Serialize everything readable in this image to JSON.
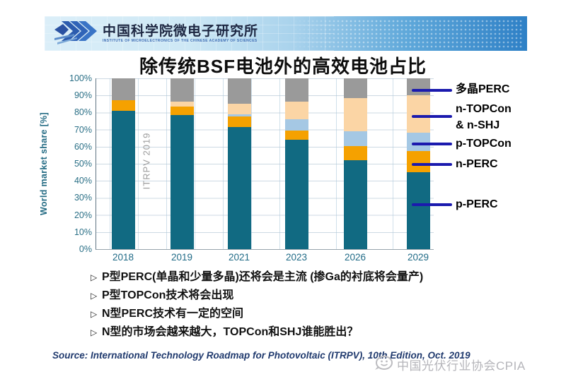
{
  "header": {
    "org_name_cn": "中国科学院微电子研究所",
    "org_name_en": "INSTITUTE OF MICROELECTRONICS OF THE CHINESE ACADEMY OF SCIENCES"
  },
  "slide_title": "除传统BSF电池外的高效电池占比",
  "chart_data": {
    "type": "bar",
    "stacked": true,
    "title": "除传统BSF电池外的高效电池占比",
    "categories": [
      "2018",
      "2019",
      "2021",
      "2023",
      "2026",
      "2029"
    ],
    "series": [
      {
        "name": "p-PERC",
        "color": "#116A82",
        "values": [
          81,
          78.5,
          71.5,
          64,
          52,
          45
        ]
      },
      {
        "name": "n-PERC",
        "color": "#F5A100",
        "values": [
          6,
          5,
          6,
          5.5,
          8.5,
          12.5
        ]
      },
      {
        "name": "p-TOPCon",
        "color": "#A5C8E4",
        "values": [
          0,
          0,
          1.5,
          6.5,
          8.5,
          10.5
        ]
      },
      {
        "name": "n-TOPCon & n-SHJ",
        "color": "#FBD5A5",
        "values": [
          0,
          3,
          6,
          10.5,
          19.5,
          22
        ]
      },
      {
        "name": "多晶PERC",
        "color": "#9A9A9A",
        "values": [
          13,
          13.5,
          15,
          13.5,
          11.5,
          10
        ]
      }
    ],
    "xlabel": "",
    "ylabel": "World market share [%]",
    "ylim": [
      0,
      100
    ],
    "ytick_step": 10,
    "ytick_suffix": "%",
    "grid": true,
    "legend_position": "right",
    "inner_watermark": "ITRPV 2019"
  },
  "legend": {
    "line_color": "#1B1AAE",
    "items": [
      {
        "label_lines": [
          "多晶PERC"
        ]
      },
      {
        "label_lines": [
          "n-TOPCon",
          "& n-SHJ"
        ]
      },
      {
        "label_lines": [
          "p-TOPCon"
        ]
      },
      {
        "label_lines": [
          "n-PERC"
        ]
      },
      {
        "label_lines": [
          "p-PERC"
        ]
      }
    ]
  },
  "bullets": [
    "P型PERC(单晶和少量多晶)还将会是主流 (掺Ga的衬底将会量产)",
    "P型TOPCon技术将会出现",
    "N型PERC技术有一定的空间",
    "N型的市场会越来越大，TOPCon和SHJ谁能胜出？"
  ],
  "source_line": "Source: International Technology Roadmap for Photovoltaic (ITRPV), 10th Edition, Oct. 2019",
  "footer_watermark": "中国光伏行业协会CPIA",
  "icons": {
    "logo": "triple-chevron-arrows",
    "footer": "speech-bubble-smiley"
  }
}
